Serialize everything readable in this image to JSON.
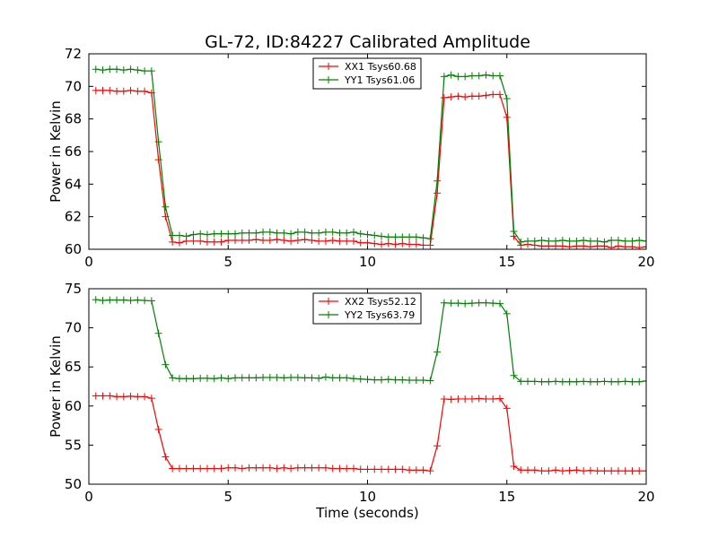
{
  "chart_data": [
    {
      "type": "line",
      "title": "GL-72, ID:84227 Calibrated Amplitude",
      "xlabel": "",
      "ylabel": "Power in Kelvin",
      "xlim": [
        0,
        20
      ],
      "ylim": [
        60,
        72
      ],
      "xticks": [
        "0",
        "5",
        "10",
        "15",
        "20"
      ],
      "yticks": [
        "60",
        "62",
        "64",
        "66",
        "68",
        "70",
        "72"
      ],
      "legend_position": "top-center",
      "x": [
        0.25,
        0.5,
        0.75,
        1.0,
        1.25,
        1.5,
        1.75,
        2.0,
        2.25,
        2.5,
        2.75,
        3.0,
        3.25,
        3.5,
        3.75,
        4.0,
        4.25,
        4.5,
        4.75,
        5.0,
        5.25,
        5.5,
        5.75,
        6.0,
        6.25,
        6.5,
        6.75,
        7.0,
        7.25,
        7.5,
        7.75,
        8.0,
        8.25,
        8.5,
        8.75,
        9.0,
        9.25,
        9.5,
        9.75,
        10.0,
        10.25,
        10.5,
        10.75,
        11.0,
        11.25,
        11.5,
        11.75,
        12.0,
        12.25,
        12.5,
        12.75,
        13.0,
        13.25,
        13.5,
        13.75,
        14.0,
        14.25,
        14.5,
        14.75,
        15.0,
        15.25,
        15.5,
        15.75,
        16.0,
        16.25,
        16.5,
        16.75,
        17.0,
        17.25,
        17.5,
        17.75,
        18.0,
        18.25,
        18.5,
        18.75,
        19.0,
        19.25,
        19.5,
        19.75,
        20.0
      ],
      "series": [
        {
          "name": "XX1 Tsys60.68",
          "color": "#ff0000",
          "values": [
            69.75,
            69.75,
            69.75,
            69.7,
            69.7,
            69.75,
            69.7,
            69.7,
            69.6,
            65.5,
            62.0,
            60.45,
            60.4,
            60.5,
            60.5,
            60.5,
            60.45,
            60.45,
            60.45,
            60.55,
            60.55,
            60.55,
            60.55,
            60.6,
            60.55,
            60.55,
            60.6,
            60.55,
            60.5,
            60.55,
            60.6,
            60.55,
            60.5,
            60.5,
            60.55,
            60.5,
            60.5,
            60.5,
            60.4,
            60.4,
            60.35,
            60.3,
            60.35,
            60.3,
            60.35,
            60.3,
            60.3,
            60.25,
            60.25,
            63.45,
            69.3,
            69.35,
            69.4,
            69.35,
            69.4,
            69.4,
            69.45,
            69.5,
            69.5,
            68.1,
            60.8,
            60.25,
            60.3,
            60.25,
            60.2,
            60.2,
            60.2,
            60.2,
            60.15,
            60.2,
            60.2,
            60.15,
            60.2,
            60.2,
            60.1,
            60.2,
            60.15,
            60.15,
            60.1,
            60.15
          ]
        },
        {
          "name": "YY1 Tsys61.06",
          "color": "#008000",
          "values": [
            71.05,
            71.0,
            71.05,
            71.05,
            71.0,
            71.05,
            71.0,
            70.95,
            70.95,
            66.6,
            62.6,
            60.85,
            60.85,
            60.8,
            60.9,
            60.95,
            60.9,
            60.95,
            60.95,
            60.95,
            60.95,
            61.0,
            61.0,
            61.0,
            61.05,
            61.05,
            61.0,
            61.0,
            60.95,
            61.05,
            61.05,
            61.0,
            61.0,
            61.05,
            61.05,
            61.0,
            61.0,
            61.05,
            60.95,
            60.9,
            60.85,
            60.8,
            60.75,
            60.75,
            60.75,
            60.75,
            60.75,
            60.7,
            60.65,
            64.2,
            70.6,
            70.7,
            70.6,
            70.6,
            70.65,
            70.65,
            70.7,
            70.65,
            70.65,
            69.25,
            61.1,
            60.45,
            60.5,
            60.5,
            60.55,
            60.5,
            60.5,
            60.55,
            60.5,
            60.5,
            60.55,
            60.5,
            60.5,
            60.45,
            60.55,
            60.55,
            60.5,
            60.5,
            60.55,
            60.5
          ]
        }
      ]
    },
    {
      "type": "line",
      "title": "",
      "xlabel": "Time (seconds)",
      "ylabel": "Power in Kelvin",
      "xlim": [
        0,
        20
      ],
      "ylim": [
        50,
        75
      ],
      "xticks": [
        "0",
        "5",
        "10",
        "15",
        "20"
      ],
      "yticks": [
        "50",
        "55",
        "60",
        "65",
        "70",
        "75"
      ],
      "legend_position": "top-center",
      "x": [
        0.25,
        0.5,
        0.75,
        1.0,
        1.25,
        1.5,
        1.75,
        2.0,
        2.25,
        2.5,
        2.75,
        3.0,
        3.25,
        3.5,
        3.75,
        4.0,
        4.25,
        4.5,
        4.75,
        5.0,
        5.25,
        5.5,
        5.75,
        6.0,
        6.25,
        6.5,
        6.75,
        7.0,
        7.25,
        7.5,
        7.75,
        8.0,
        8.25,
        8.5,
        8.75,
        9.0,
        9.25,
        9.5,
        9.75,
        10.0,
        10.25,
        10.5,
        10.75,
        11.0,
        11.25,
        11.5,
        11.75,
        12.0,
        12.25,
        12.5,
        12.75,
        13.0,
        13.25,
        13.5,
        13.75,
        14.0,
        14.25,
        14.5,
        14.75,
        15.0,
        15.25,
        15.5,
        15.75,
        16.0,
        16.25,
        16.5,
        16.75,
        17.0,
        17.25,
        17.5,
        17.75,
        18.0,
        18.25,
        18.5,
        18.75,
        19.0,
        19.25,
        19.5,
        19.75,
        20.0
      ],
      "series": [
        {
          "name": "XX2 Tsys52.12",
          "color": "#ff0000",
          "values": [
            61.3,
            61.3,
            61.3,
            61.2,
            61.2,
            61.25,
            61.2,
            61.2,
            61.0,
            57.0,
            53.5,
            52.0,
            52.0,
            52.0,
            52.0,
            52.0,
            52.0,
            52.0,
            52.0,
            52.1,
            52.1,
            52.0,
            52.1,
            52.1,
            52.1,
            52.1,
            52.0,
            52.1,
            52.0,
            52.1,
            52.1,
            52.1,
            52.1,
            52.1,
            52.0,
            52.0,
            52.0,
            52.0,
            51.9,
            51.9,
            51.9,
            51.9,
            51.9,
            51.9,
            51.9,
            51.8,
            51.8,
            51.8,
            51.7,
            54.9,
            60.9,
            60.85,
            60.9,
            60.9,
            60.9,
            60.95,
            60.9,
            60.9,
            60.95,
            59.7,
            52.3,
            51.8,
            51.8,
            51.8,
            51.7,
            51.7,
            51.8,
            51.7,
            51.75,
            51.8,
            51.7,
            51.75,
            51.7,
            51.7,
            51.7,
            51.7,
            51.7,
            51.7,
            51.7,
            51.7
          ]
        },
        {
          "name": "YY2 Tsys63.79",
          "color": "#008000",
          "values": [
            73.6,
            73.5,
            73.55,
            73.55,
            73.55,
            73.5,
            73.55,
            73.5,
            73.45,
            69.3,
            65.3,
            63.6,
            63.5,
            63.5,
            63.5,
            63.55,
            63.55,
            63.5,
            63.6,
            63.5,
            63.6,
            63.6,
            63.6,
            63.6,
            63.65,
            63.65,
            63.65,
            63.6,
            63.65,
            63.65,
            63.6,
            63.6,
            63.55,
            63.7,
            63.6,
            63.6,
            63.6,
            63.5,
            63.45,
            63.4,
            63.35,
            63.35,
            63.4,
            63.35,
            63.35,
            63.3,
            63.3,
            63.3,
            63.25,
            66.9,
            73.2,
            73.15,
            73.15,
            73.1,
            73.15,
            73.2,
            73.2,
            73.15,
            73.1,
            71.8,
            63.9,
            63.15,
            63.15,
            63.15,
            63.1,
            63.1,
            63.15,
            63.1,
            63.1,
            63.1,
            63.15,
            63.1,
            63.1,
            63.15,
            63.1,
            63.1,
            63.15,
            63.1,
            63.1,
            63.2
          ]
        }
      ]
    }
  ]
}
